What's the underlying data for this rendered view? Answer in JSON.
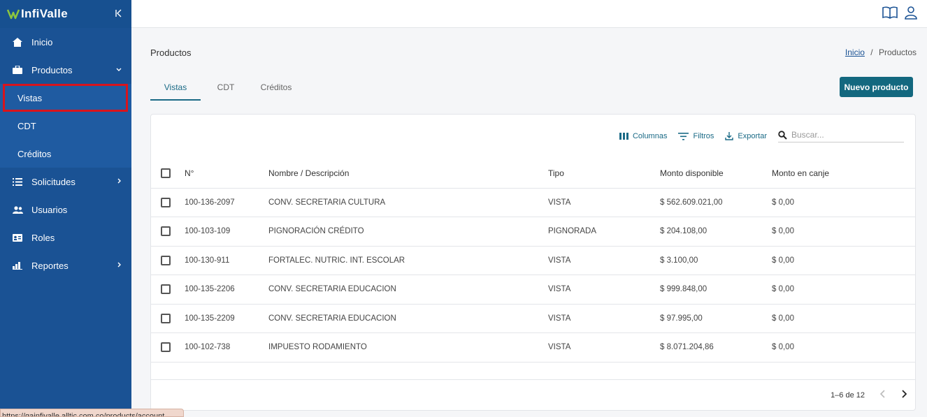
{
  "brand": {
    "name": "InfiValle",
    "accent": "#1a5294",
    "primary_button": "#13687f"
  },
  "sidebar": {
    "items": [
      {
        "label": "Inicio",
        "icon": "home-icon"
      },
      {
        "label": "Productos",
        "icon": "briefcase-icon"
      },
      {
        "label": "Solicitudes",
        "icon": "list-icon"
      },
      {
        "label": "Usuarios",
        "icon": "users-icon"
      },
      {
        "label": "Roles",
        "icon": "id-card-icon"
      },
      {
        "label": "Reportes",
        "icon": "bar-chart-icon"
      }
    ],
    "subitems": [
      {
        "label": "Vistas"
      },
      {
        "label": "CDT"
      },
      {
        "label": "Créditos"
      }
    ]
  },
  "header": {
    "title": "Productos",
    "breadcrumb_home": "Inicio",
    "breadcrumb_sep": "/",
    "breadcrumb_current": "Productos"
  },
  "tabs": [
    "Vistas",
    "CDT",
    "Créditos"
  ],
  "actions": {
    "new_product": "Nuevo producto"
  },
  "toolbar": {
    "columns": "Columnas",
    "filters": "Filtros",
    "export": "Exportar",
    "search_placeholder": "Buscar..."
  },
  "table": {
    "headers": [
      "N°",
      "Nombre / Descripción",
      "Tipo",
      "Monto disponible",
      "Monto en canje"
    ],
    "rows": [
      [
        "100-136-2097",
        "CONV. SECRETARIA CULTURA",
        "VISTA",
        "$ 562.609.021,00",
        "$ 0,00"
      ],
      [
        "100-103-109",
        "PIGNORACIÓN CRÉDITO",
        "PIGNORADA",
        "$ 204.108,00",
        "$ 0,00"
      ],
      [
        "100-130-911",
        "FORTALEC. NUTRIC. INT. ESCOLAR",
        "VISTA",
        "$ 3.100,00",
        "$ 0,00"
      ],
      [
        "100-135-2206",
        "CONV. SECRETARIA EDUCACION",
        "VISTA",
        "$ 999.848,00",
        "$ 0,00"
      ],
      [
        "100-135-2209",
        "CONV. SECRETARIA EDUCACION",
        "VISTA",
        "$ 97.995,00",
        "$ 0,00"
      ],
      [
        "100-102-738",
        "IMPUESTO RODAMIENTO",
        "VISTA",
        "$ 8.071.204,86",
        "$ 0,00"
      ]
    ]
  },
  "pagination": {
    "label": "1–6 de 12"
  },
  "status_bar": {
    "url": "https://gainfivalle.alltic.com.co/products/account"
  }
}
